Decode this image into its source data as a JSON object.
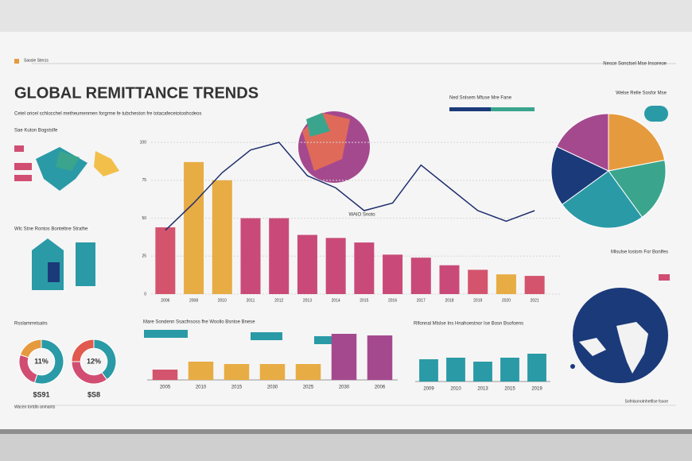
{
  "header": {
    "title": "GLOBAL REMITTANCE TRENDS",
    "subtitle": "Cetel oricel schlocchel metheumenmen forgrme fe tubcheston fre totacafecetotoohcdeos",
    "brand": "Saosle Sterzs",
    "top_right": "Nesce Sonctsel Mse Insoreoe"
  },
  "labels": {
    "left1": "Sae Kuton Bogstslfe",
    "left2": "Wlc Stne Rontos Bonteltne Stralhe",
    "left3": "Rsslamrretsalrs",
    "footer_left": "Waceo tortdlo anmants",
    "footer_right": "Sofnlsonotnhetfise fssoe",
    "mid_top": "Ned Snlsem Mfuse Mre Fane",
    "map_title": "Mlsulse lostom For Bonlfes"
  },
  "chart_data": [
    {
      "type": "combo",
      "annotation": "WAIO Snoto",
      "categories": [
        "2006",
        "2008",
        "2010",
        "2011",
        "2012",
        "2013",
        "2014",
        "2015",
        "2016",
        "2017",
        "2018",
        "2019",
        "2020",
        "2021"
      ],
      "ylim": [
        0,
        110
      ],
      "yticks": [
        0,
        25,
        50,
        75,
        100
      ],
      "grid": true,
      "series": [
        {
          "type": "bar",
          "colors": [
            "#d4546e",
            "#e7ac44",
            "#e7ac44",
            "#c94a78",
            "#c94a78",
            "#c94a78",
            "#c94a78",
            "#c94a78",
            "#c94a78",
            "#c94a78",
            "#c94a78",
            "#d4546e",
            "#e7ac44",
            "#d4546e"
          ],
          "values": [
            44,
            87,
            75,
            50,
            50,
            39,
            37,
            34,
            26,
            24,
            19,
            16,
            13,
            12
          ]
        },
        {
          "type": "line",
          "color": "#1f2f6e",
          "values": [
            42,
            60,
            80,
            95,
            100,
            78,
            70,
            55,
            60,
            85,
            70,
            55,
            48,
            55
          ]
        }
      ]
    },
    {
      "type": "pie",
      "title": "Welse Relle Sosfor Mse",
      "colors": [
        "#e69a3e",
        "#3aa58c",
        "#2a9aa6",
        "#1b3a7a",
        "#a5498f"
      ],
      "values": [
        22,
        18,
        25,
        17,
        18
      ]
    },
    {
      "type": "donut",
      "center_label": "11%",
      "caption": "$S91",
      "colors": [
        "#2a9aa6",
        "#d14e72",
        "#e69a3e"
      ],
      "values": [
        55,
        25,
        20
      ]
    },
    {
      "type": "donut",
      "center_label": "12%",
      "caption": "$S8",
      "colors": [
        "#2a9aa6",
        "#d14e72",
        "#e05a4e"
      ],
      "values": [
        40,
        35,
        25
      ]
    },
    {
      "type": "bar",
      "title": "Mare Sondenn Ssacfnsoss fhe Woollo Bsntoe Bnese",
      "categories": [
        "2005",
        "2010",
        "2015",
        "2030",
        "2025",
        "2030",
        "2006"
      ],
      "ylim": [
        0,
        60
      ],
      "colors": [
        "#d4546e",
        "#e7ac44",
        "#e7ac44",
        "#e7ac44",
        "#e7ac44",
        "#a5498f",
        "#a5498f"
      ],
      "values": [
        13,
        23,
        20,
        20,
        20,
        58,
        56
      ]
    },
    {
      "type": "bar",
      "title": "Rlfonnal Mlslse Ins Hnahoestnor Ise Bosn Bsofoens",
      "categories": [
        "2009",
        "2010",
        "2013",
        "2015",
        "2019"
      ],
      "ylim": [
        0,
        50
      ],
      "colors": [
        "#2a9aa6",
        "#2a9aa6",
        "#2a9aa6",
        "#2a9aa6",
        "#2a9aa6"
      ],
      "values": [
        28,
        30,
        25,
        30,
        35
      ]
    }
  ]
}
